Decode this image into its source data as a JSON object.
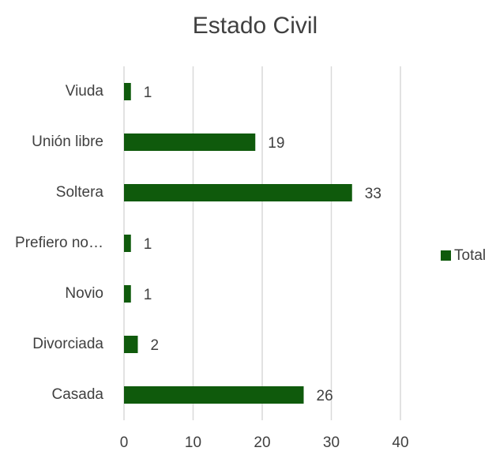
{
  "chart_data": {
    "type": "bar",
    "orientation": "horizontal",
    "title": "Estado Civil",
    "categories": [
      "Casada",
      "Divorciada",
      "Novio",
      "Prefiero no…",
      "Soltera",
      "Unión libre",
      "Viuda"
    ],
    "series": [
      {
        "name": "Total",
        "color": "#0f5a0c",
        "values": [
          26,
          2,
          1,
          1,
          33,
          19,
          1
        ]
      }
    ],
    "xlim": [
      0,
      40
    ],
    "xticks": [
      0,
      10,
      20,
      30,
      40
    ],
    "grid": true,
    "legend": "right"
  }
}
